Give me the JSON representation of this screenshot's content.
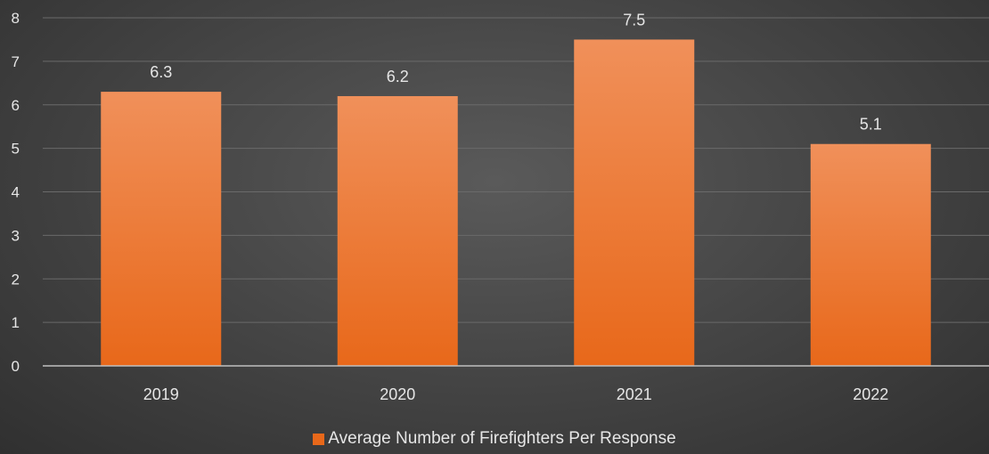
{
  "chart_data": {
    "type": "bar",
    "title": "",
    "xlabel": "",
    "ylabel": "",
    "categories": [
      "2019",
      "2020",
      "2021",
      "2022"
    ],
    "series": [
      {
        "name": "Average Number of Firefighters Per Response",
        "values": [
          6.3,
          6.2,
          7.5,
          5.1
        ]
      }
    ],
    "ylim": [
      0,
      8
    ],
    "yticks": [
      "0",
      "1",
      "2",
      "3",
      "4",
      "5",
      "6",
      "7",
      "8"
    ],
    "grid": true,
    "legend_position": "bottom",
    "data_labels": [
      "6.3",
      "6.2",
      "7.5",
      "5.1"
    ]
  },
  "colors": {
    "bar_top": "#f0905a",
    "bar_bottom": "#e8681a",
    "text": "#e6e6e6",
    "gridline": "#6a6a6a",
    "axis": "#bfbfbf"
  }
}
